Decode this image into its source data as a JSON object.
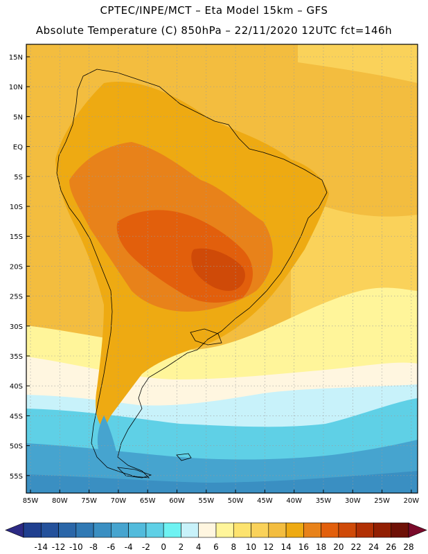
{
  "header": {
    "line1": "CPTEC/INPE/MCT –  Eta Model 15km – GFS",
    "line2": "Absolute Temperature (C) 850hPa – 22/11/2020 12UTC fct=146h"
  },
  "axes": {
    "lat_labels": [
      "15N",
      "10N",
      "5N",
      "EQ",
      "5S",
      "10S",
      "15S",
      "20S",
      "25S",
      "30S",
      "35S",
      "40S",
      "45S",
      "50S",
      "55S"
    ],
    "lon_labels": [
      "85W",
      "80W",
      "75W",
      "70W",
      "65W",
      "60W",
      "55W",
      "50W",
      "45W",
      "40W",
      "35W",
      "30W",
      "25W",
      "20W"
    ]
  },
  "colorbar": {
    "labels": [
      "-14",
      "-12",
      "-10",
      "-8",
      "-6",
      "-4",
      "-2",
      "0",
      "2",
      "4",
      "6",
      "8",
      "10",
      "12",
      "14",
      "16",
      "18",
      "20",
      "22",
      "24",
      "26",
      "28"
    ],
    "colors": [
      "#1f3f8f",
      "#24519b",
      "#2a66a8",
      "#3079b4",
      "#3a8fc2",
      "#46a4cf",
      "#52bbdc",
      "#5fd0e6",
      "#6ef2f2",
      "#c8f2fa",
      "#fff6e0",
      "#fff59a",
      "#fde36e",
      "#fad25a",
      "#f3bd3f",
      "#eeaa12",
      "#e8821a",
      "#e25f0c",
      "#cf4a08",
      "#b13004",
      "#921f02",
      "#6e1006"
    ],
    "end_low_color": "#2c2a84",
    "end_high_color": "#7a0a2a"
  },
  "map": {
    "colors": {
      "ocean_warm": "#f3bd3f",
      "ocean_mild": "#fad25a",
      "ocean_cool": "#fff59a",
      "pale": "#fff6e0",
      "ice": "#c8f2fa",
      "cyan": "#5fd0e6",
      "cold1": "#46a4cf",
      "cold2": "#3a8fc2",
      "land_20": "#eeaa12",
      "land_22": "#e8821a",
      "land_24": "#e25f0c",
      "land_26": "#cf4a08",
      "coast": "#000000"
    }
  }
}
